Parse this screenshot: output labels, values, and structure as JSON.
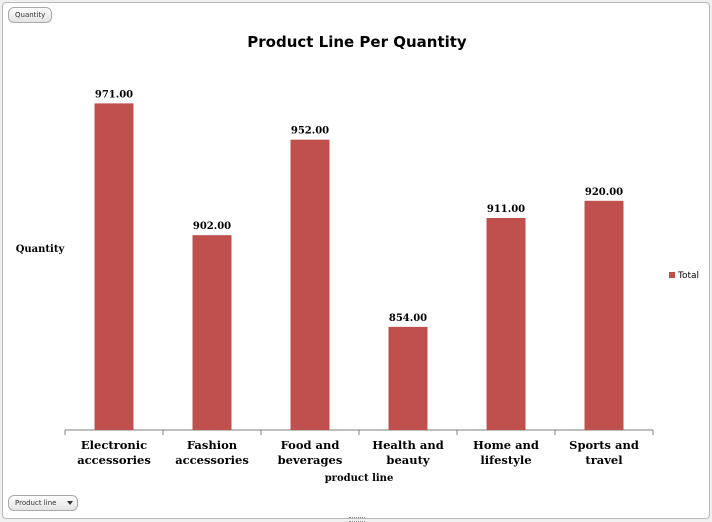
{
  "field_buttons": {
    "value_field": "Quantity",
    "axis_field": "Product line"
  },
  "colors": {
    "bar": "#c0504d"
  },
  "chart_data": {
    "type": "bar",
    "title": "Product Line Per Quantity",
    "xlabel": "product line",
    "ylabel": "Quantity",
    "categories": [
      [
        "Electronic",
        "accessories"
      ],
      [
        "Fashion",
        "accessories"
      ],
      [
        "Food and",
        "beverages"
      ],
      [
        "Health and",
        "beauty"
      ],
      [
        "Home and",
        "lifestyle"
      ],
      [
        "Sports and",
        "travel"
      ]
    ],
    "series": [
      {
        "name": "Total",
        "values": [
          971,
          902,
          952,
          854,
          911,
          920
        ],
        "labels": [
          "971.00",
          "902.00",
          "952.00",
          "854.00",
          "911.00",
          "920.00"
        ]
      }
    ],
    "ylim": [
      0,
      1000
    ],
    "grid": false,
    "legend_position": "right"
  }
}
